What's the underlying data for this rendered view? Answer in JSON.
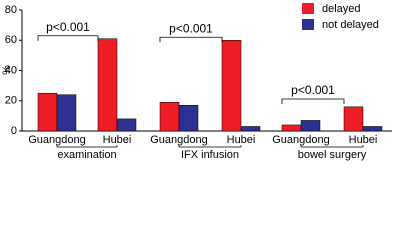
{
  "chart_data": {
    "type": "bar",
    "y_label": "%",
    "categories": [
      "Guangdong",
      "Hubei",
      "Guangdong",
      "Hubei",
      "Guangdong",
      "Hubei"
    ],
    "groups": [
      "examination",
      "IFX infusion",
      "bowel surgery"
    ],
    "series": [
      {
        "name": "delayed",
        "color": "#ee1c25",
        "values": [
          25,
          61,
          19,
          60,
          4,
          16
        ]
      },
      {
        "name": "not delayed",
        "color": "#2e3192",
        "values": [
          24,
          8,
          17,
          3,
          7,
          3
        ]
      }
    ],
    "annotations": [
      "p<0.001",
      "p<0.001",
      "p<0.001"
    ],
    "ylim": [
      0,
      80
    ],
    "yticks": [
      0,
      20,
      40,
      60,
      80
    ],
    "legend": "top-right"
  }
}
